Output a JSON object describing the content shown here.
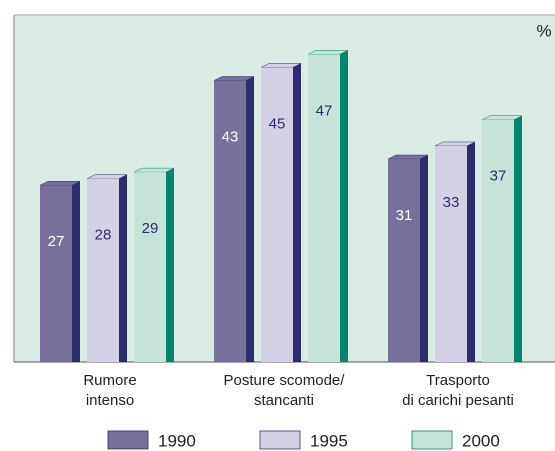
{
  "chart_data": {
    "type": "bar",
    "unit_label": "%",
    "categories": [
      [
        "Rumore",
        "intenso"
      ],
      [
        "Posture scomode/",
        "stancanti"
      ],
      [
        "Trasporto",
        "di carichi pesanti"
      ]
    ],
    "series": [
      {
        "name": "1990",
        "color": "#76709a",
        "side_color": "#2e2d6c",
        "label_color": "#ffffff",
        "values": [
          27,
          43,
          31
        ]
      },
      {
        "name": "1995",
        "color": "#d5d1e5",
        "side_color": "#2e2d6c",
        "label_color": "#2e2d6c",
        "values": [
          28,
          45,
          33
        ]
      },
      {
        "name": "2000",
        "color": "#c7e2d8",
        "side_color": "#00866c",
        "label_color": "#2e2d6c",
        "values": [
          29,
          47,
          37
        ]
      }
    ],
    "ylim": [
      0,
      53
    ]
  }
}
